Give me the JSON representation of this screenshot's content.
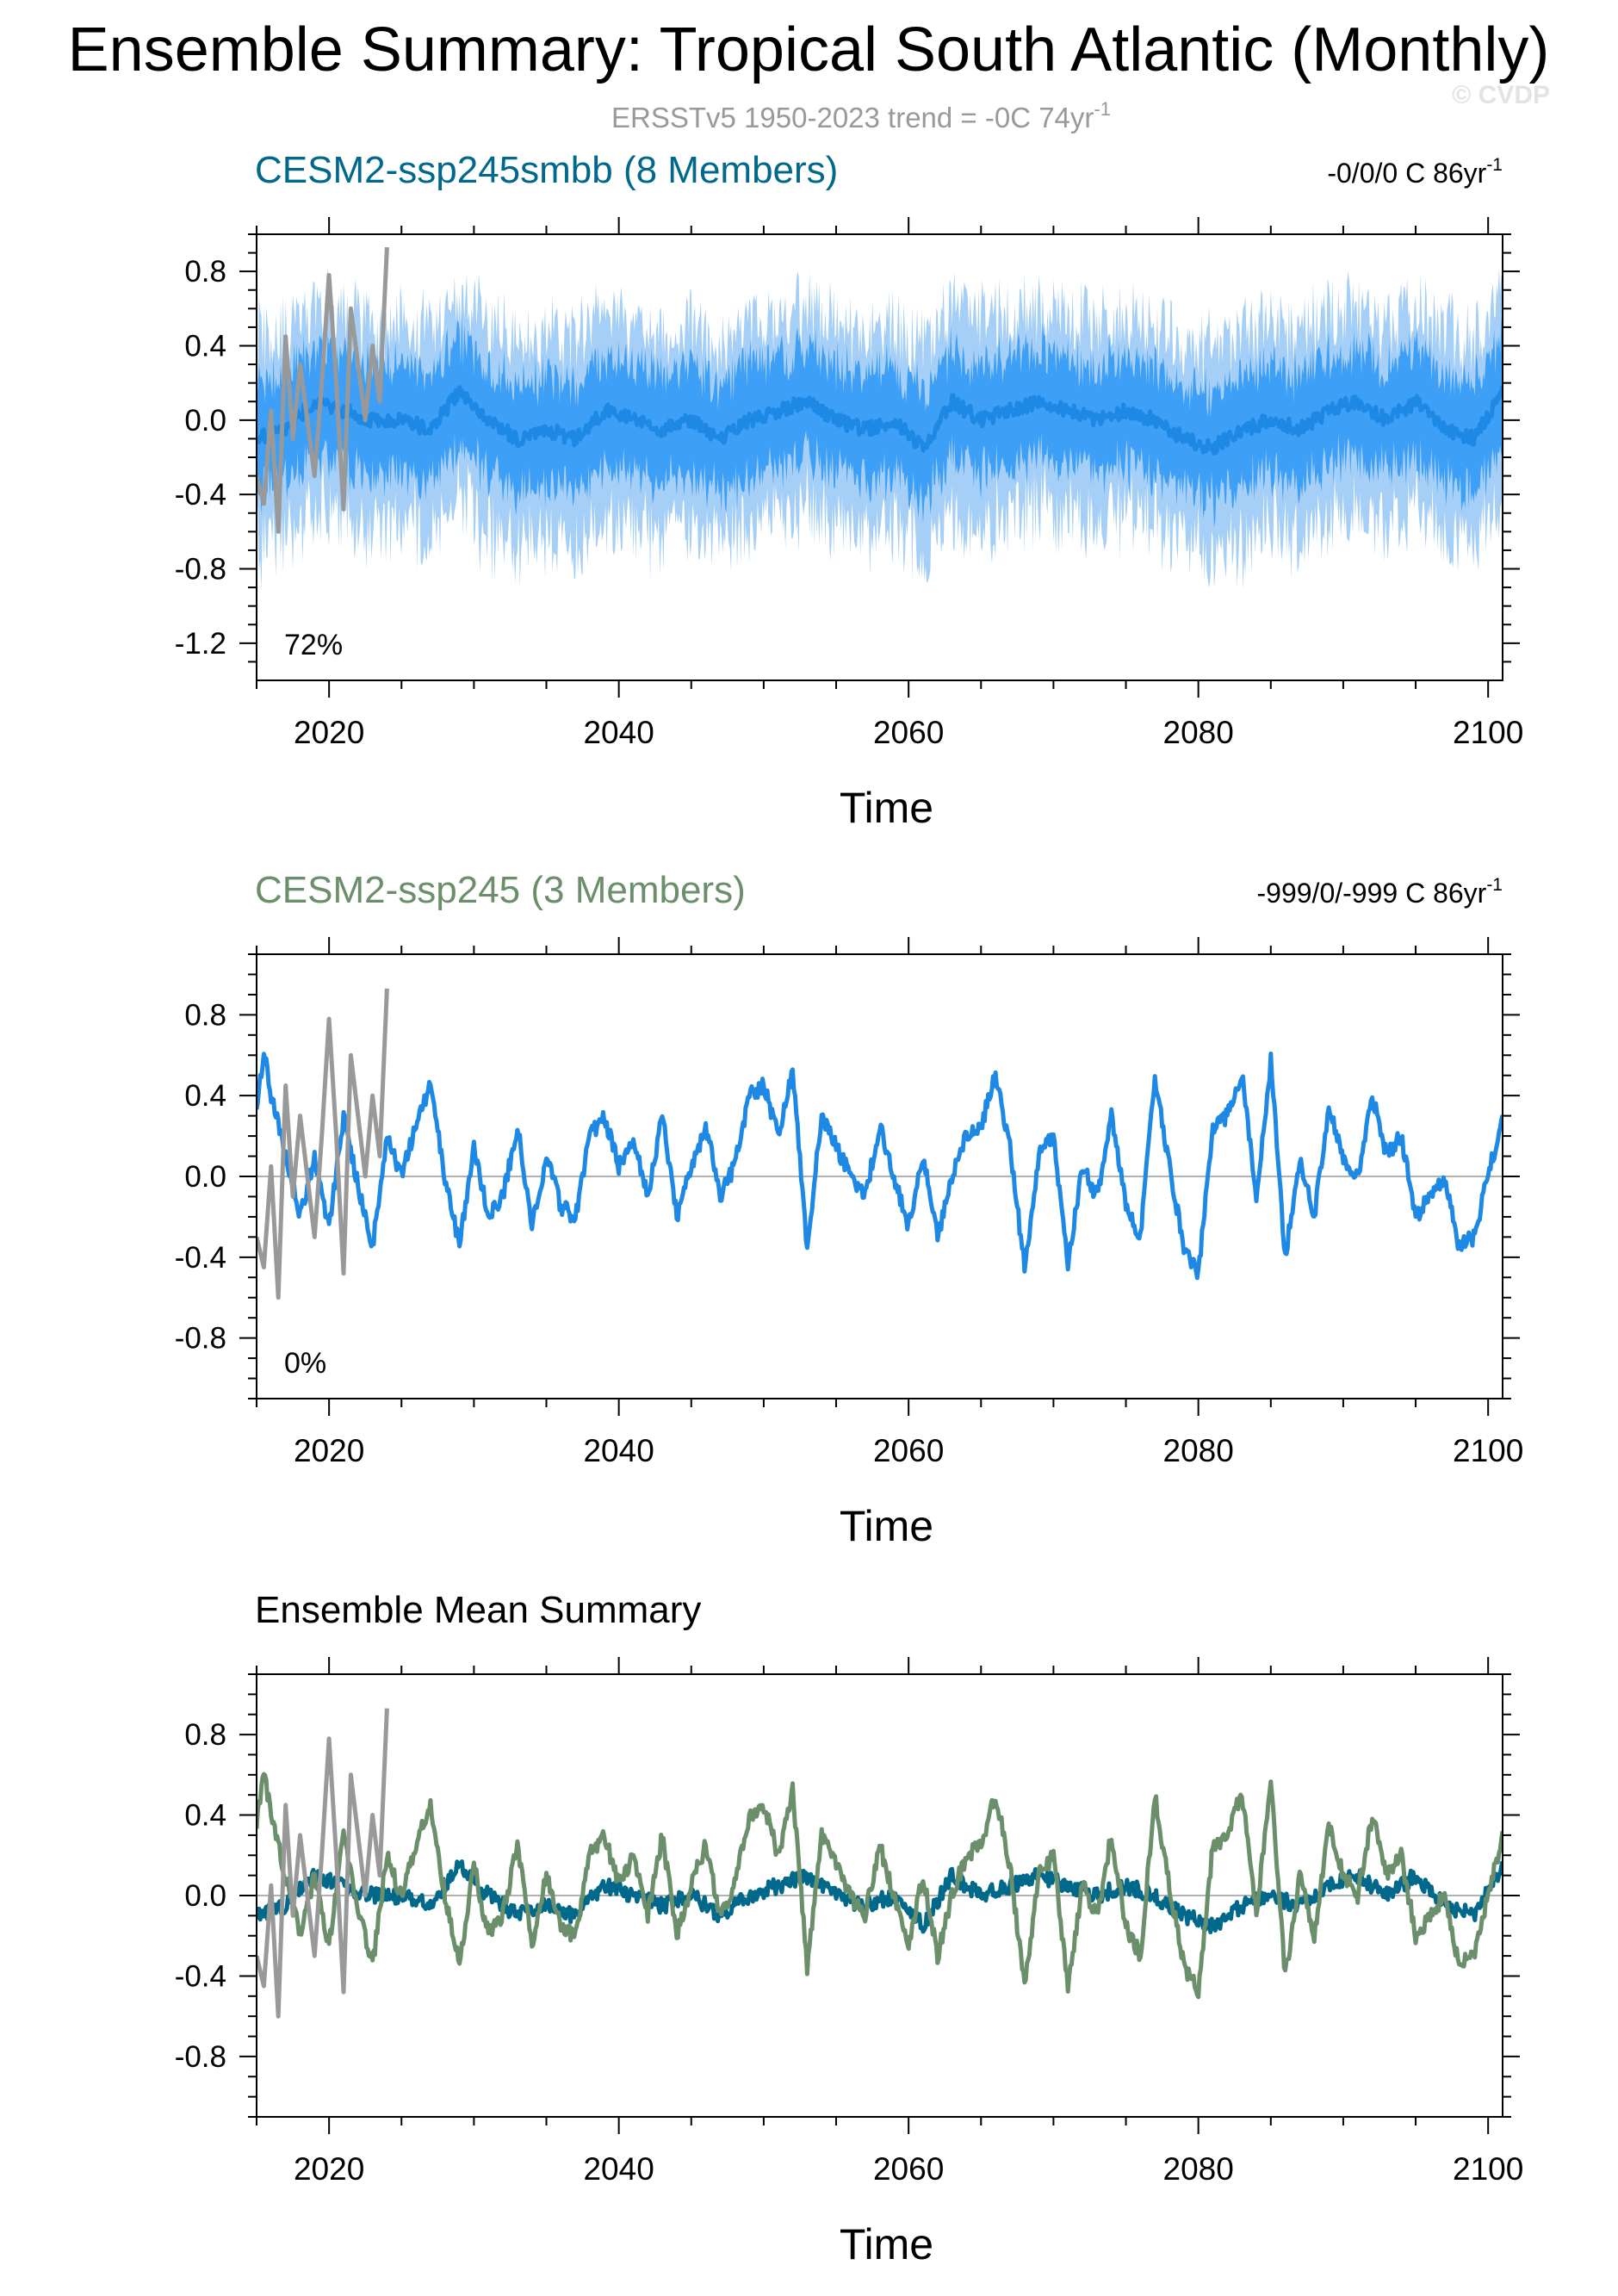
{
  "title": "Ensemble Summary: Tropical South Atlantic (Monthly)",
  "subtitle": "ERSSTv5 1950-2023 trend = -0C 74yr",
  "subtitle_sup": "-1",
  "watermark": "© CVDP",
  "colors": {
    "observations": "#999999",
    "ens1_mean": "#1e88e5",
    "ens1_inner": "#3d9ff5",
    "ens1_outer": "#a6cff7",
    "ens2_line": "#1e88e5",
    "summary_ens1": "#00688b",
    "summary_ens2": "#6b8e6b",
    "ens1_title": "#00688b",
    "ens2_title": "#6b8e6b"
  },
  "panels": [
    {
      "title": "CESM2-ssp245smbb (8 Members)",
      "trend": "-0/0/0 C 86yr",
      "trend_sup": "-1",
      "pct": "72%",
      "xlabel": "Time"
    },
    {
      "title": "CESM2-ssp245 (3 Members)",
      "trend": "-999/0/-999 C 86yr",
      "trend_sup": "-1",
      "pct": "0%",
      "xlabel": "Time"
    },
    {
      "title": "Ensemble Mean Summary",
      "trend": "",
      "trend_sup": "",
      "pct": "",
      "xlabel": "Time"
    }
  ],
  "chart_data": [
    {
      "type": "area",
      "title": "CESM2-ssp245smbb (8 Members)",
      "xlabel": "Time",
      "ylabel": "",
      "xlim": [
        2015,
        2101
      ],
      "ylim": [
        -1.4,
        1.0
      ],
      "x_ticks": [
        2020,
        2040,
        2060,
        2080,
        2100
      ],
      "y_ticks": [
        -1.2,
        -0.8,
        -0.4,
        0.0,
        0.4,
        0.8
      ],
      "y_tick_labels": [
        "-1.2",
        "-0.8",
        "-0.4",
        "0.0",
        "0.4",
        "0.8"
      ],
      "x_tick_labels": [
        "2020",
        "2040",
        "2060",
        "2080",
        "2100"
      ],
      "zero_line": true,
      "series": [
        {
          "role": "ensemble_range",
          "x_start": 2015,
          "x_end": 2101,
          "outer_spread": 0.55,
          "inner_spread": 0.3
        },
        {
          "role": "ensemble_mean",
          "x": [
            2015,
            2017,
            2019,
            2021,
            2023,
            2025,
            2027,
            2029,
            2031,
            2033,
            2035,
            2037,
            2039,
            2041,
            2043,
            2045,
            2047,
            2049,
            2051,
            2053,
            2055,
            2057,
            2059,
            2061,
            2063,
            2065,
            2067,
            2069,
            2071,
            2073,
            2075,
            2077,
            2079,
            2081,
            2083,
            2085,
            2087,
            2089,
            2091,
            2093,
            2095,
            2097,
            2099,
            2101
          ],
          "values": [
            -0.1,
            -0.05,
            0.1,
            0.05,
            0.0,
            0.0,
            -0.05,
            0.15,
            0.0,
            -0.1,
            -0.05,
            -0.1,
            0.05,
            0.0,
            -0.05,
            0.0,
            -0.1,
            0.0,
            0.05,
            0.1,
            0.0,
            -0.05,
            0.0,
            -0.15,
            0.1,
            0.0,
            0.05,
            0.1,
            0.05,
            0.0,
            0.05,
            0.0,
            -0.1,
            -0.15,
            -0.05,
            0.0,
            -0.05,
            0.05,
            0.1,
            0.0,
            0.1,
            -0.05,
            -0.1,
            0.15
          ]
        },
        {
          "role": "observations",
          "name": "ERSSTv5",
          "x": [
            2015,
            2015.5,
            2016,
            2016.5,
            2017,
            2017.5,
            2018,
            2018.5,
            2019,
            2019.5,
            2020,
            2020.5,
            2021,
            2021.5,
            2022,
            2022.5,
            2023,
            2023.5,
            2024
          ],
          "values": [
            -0.3,
            -0.45,
            0.05,
            -0.6,
            0.45,
            -0.1,
            0.3,
            0.0,
            -0.3,
            0.2,
            0.78,
            0.2,
            -0.48,
            0.6,
            0.3,
            0.0,
            0.4,
            0.1,
            0.93
          ]
        }
      ]
    },
    {
      "type": "line",
      "title": "CESM2-ssp245 (3 Members)",
      "xlabel": "Time",
      "ylabel": "",
      "xlim": [
        2015,
        2101
      ],
      "ylim": [
        -1.1,
        1.1
      ],
      "x_ticks": [
        2020,
        2040,
        2060,
        2080,
        2100
      ],
      "y_ticks": [
        -0.8,
        -0.4,
        0.0,
        0.4,
        0.8
      ],
      "y_tick_labels": [
        "-0.8",
        "-0.4",
        "0.0",
        "0.4",
        "0.8"
      ],
      "x_tick_labels": [
        "2020",
        "2040",
        "2060",
        "2080",
        "2100"
      ],
      "zero_line": true,
      "series": [
        {
          "role": "ensemble_mean",
          "x": [
            2015,
            2015.5,
            2016,
            2017,
            2018,
            2019,
            2020,
            2021,
            2022,
            2023,
            2024,
            2025,
            2026,
            2027,
            2028,
            2029,
            2030,
            2031,
            2032,
            2033,
            2034,
            2035,
            2036,
            2037,
            2038,
            2039,
            2040,
            2041,
            2042,
            2043,
            2044,
            2045,
            2046,
            2047,
            2048,
            2049,
            2050,
            2051,
            2052,
            2053,
            2054,
            2055,
            2056,
            2057,
            2058,
            2059,
            2060,
            2061,
            2062,
            2063,
            2064,
            2065,
            2066,
            2067,
            2068,
            2069,
            2070,
            2071,
            2072,
            2073,
            2074,
            2075,
            2076,
            2077,
            2078,
            2079,
            2080,
            2081,
            2082,
            2083,
            2084,
            2085,
            2086,
            2087,
            2088,
            2089,
            2090,
            2091,
            2092,
            2093,
            2094,
            2095,
            2096,
            2097,
            2098,
            2099,
            2100,
            2101
          ],
          "values": [
            0.35,
            0.62,
            0.4,
            0.1,
            -0.2,
            0.1,
            -0.25,
            0.3,
            -0.05,
            -0.35,
            0.2,
            0.0,
            0.25,
            0.45,
            0.0,
            -0.35,
            0.15,
            -0.2,
            -0.1,
            0.25,
            -0.25,
            0.1,
            -0.15,
            -0.2,
            0.2,
            0.3,
            0.05,
            0.2,
            -0.1,
            0.3,
            -0.2,
            0.05,
            0.25,
            -0.1,
            0.05,
            0.4,
            0.45,
            0.2,
            0.52,
            -0.35,
            0.3,
            0.15,
            0.0,
            -0.1,
            0.25,
            0.0,
            -0.25,
            0.1,
            -0.3,
            0.0,
            0.2,
            0.25,
            0.5,
            0.15,
            -0.45,
            0.1,
            0.2,
            -0.45,
            0.05,
            -0.1,
            0.3,
            -0.15,
            -0.3,
            0.5,
            0.05,
            -0.35,
            -0.48,
            0.25,
            0.3,
            0.52,
            -0.1,
            0.57,
            -0.4,
            0.1,
            -0.2,
            0.35,
            0.1,
            0.0,
            0.4,
            0.1,
            0.2,
            -0.2,
            -0.1,
            0.0,
            -0.35,
            -0.3,
            0.0,
            0.3
          ]
        },
        {
          "role": "observations",
          "name": "ERSSTv5",
          "x": [
            2015,
            2015.5,
            2016,
            2016.5,
            2017,
            2017.5,
            2018,
            2018.5,
            2019,
            2019.5,
            2020,
            2020.5,
            2021,
            2021.5,
            2022,
            2022.5,
            2023,
            2023.5,
            2024
          ],
          "values": [
            -0.3,
            -0.45,
            0.05,
            -0.6,
            0.45,
            -0.1,
            0.3,
            0.0,
            -0.3,
            0.2,
            0.78,
            0.2,
            -0.48,
            0.6,
            0.3,
            0.0,
            0.4,
            0.1,
            0.93
          ]
        }
      ]
    },
    {
      "type": "line",
      "title": "Ensemble Mean Summary",
      "xlabel": "Time",
      "ylabel": "",
      "xlim": [
        2015,
        2101
      ],
      "ylim": [
        -1.1,
        1.1
      ],
      "x_ticks": [
        2020,
        2040,
        2060,
        2080,
        2100
      ],
      "y_ticks": [
        -0.8,
        -0.4,
        0.0,
        0.4,
        0.8
      ],
      "y_tick_labels": [
        "-0.8",
        "-0.4",
        "0.0",
        "0.4",
        "0.8"
      ],
      "x_tick_labels": [
        "2020",
        "2040",
        "2060",
        "2080",
        "2100"
      ],
      "zero_line": true,
      "series": [
        {
          "role": "ens1",
          "x": [
            2015,
            2017,
            2019,
            2021,
            2023,
            2025,
            2027,
            2029,
            2031,
            2033,
            2035,
            2037,
            2039,
            2041,
            2043,
            2045,
            2047,
            2049,
            2051,
            2053,
            2055,
            2057,
            2059,
            2061,
            2063,
            2065,
            2067,
            2069,
            2071,
            2073,
            2075,
            2077,
            2079,
            2081,
            2083,
            2085,
            2087,
            2089,
            2091,
            2093,
            2095,
            2097,
            2099,
            2101
          ],
          "values": [
            -0.1,
            -0.05,
            0.1,
            0.05,
            0.0,
            0.0,
            -0.05,
            0.15,
            0.0,
            -0.1,
            -0.05,
            -0.1,
            0.05,
            0.0,
            -0.05,
            0.0,
            -0.1,
            0.0,
            0.05,
            0.1,
            0.0,
            -0.05,
            0.0,
            -0.15,
            0.1,
            0.0,
            0.05,
            0.1,
            0.05,
            0.0,
            0.05,
            0.0,
            -0.1,
            -0.15,
            -0.05,
            0.0,
            -0.05,
            0.05,
            0.1,
            0.0,
            0.1,
            -0.05,
            -0.1,
            0.15
          ]
        },
        {
          "role": "ens2",
          "x": [
            2015,
            2015.5,
            2016,
            2017,
            2018,
            2019,
            2020,
            2021,
            2022,
            2023,
            2024,
            2025,
            2026,
            2027,
            2028,
            2029,
            2030,
            2031,
            2032,
            2033,
            2034,
            2035,
            2036,
            2037,
            2038,
            2039,
            2040,
            2041,
            2042,
            2043,
            2044,
            2045,
            2046,
            2047,
            2048,
            2049,
            2050,
            2051,
            2052,
            2053,
            2054,
            2055,
            2056,
            2057,
            2058,
            2059,
            2060,
            2061,
            2062,
            2063,
            2064,
            2065,
            2066,
            2067,
            2068,
            2069,
            2070,
            2071,
            2072,
            2073,
            2074,
            2075,
            2076,
            2077,
            2078,
            2079,
            2080,
            2081,
            2082,
            2083,
            2084,
            2085,
            2086,
            2087,
            2088,
            2089,
            2090,
            2091,
            2092,
            2093,
            2094,
            2095,
            2096,
            2097,
            2098,
            2099,
            2100,
            2101
          ],
          "values": [
            0.35,
            0.62,
            0.4,
            0.1,
            -0.2,
            0.1,
            -0.25,
            0.3,
            -0.05,
            -0.35,
            0.2,
            0.0,
            0.25,
            0.45,
            0.0,
            -0.35,
            0.15,
            -0.2,
            -0.1,
            0.25,
            -0.25,
            0.1,
            -0.15,
            -0.2,
            0.2,
            0.3,
            0.05,
            0.2,
            -0.1,
            0.3,
            -0.2,
            0.05,
            0.25,
            -0.1,
            0.05,
            0.4,
            0.45,
            0.2,
            0.52,
            -0.35,
            0.3,
            0.15,
            0.0,
            -0.1,
            0.25,
            0.0,
            -0.25,
            0.1,
            -0.3,
            0.0,
            0.2,
            0.25,
            0.5,
            0.15,
            -0.45,
            0.1,
            0.2,
            -0.45,
            0.05,
            -0.1,
            0.3,
            -0.15,
            -0.3,
            0.5,
            0.05,
            -0.35,
            -0.48,
            0.25,
            0.3,
            0.52,
            -0.1,
            0.57,
            -0.4,
            0.1,
            -0.2,
            0.35,
            0.1,
            0.0,
            0.4,
            0.1,
            0.2,
            -0.2,
            -0.1,
            0.0,
            -0.35,
            -0.3,
            0.0,
            0.3
          ]
        },
        {
          "role": "observations",
          "name": "ERSSTv5",
          "x": [
            2015,
            2015.5,
            2016,
            2016.5,
            2017,
            2017.5,
            2018,
            2018.5,
            2019,
            2019.5,
            2020,
            2020.5,
            2021,
            2021.5,
            2022,
            2022.5,
            2023,
            2023.5,
            2024
          ],
          "values": [
            -0.3,
            -0.45,
            0.05,
            -0.6,
            0.45,
            -0.1,
            0.3,
            0.0,
            -0.3,
            0.2,
            0.78,
            0.2,
            -0.48,
            0.6,
            0.3,
            0.0,
            0.4,
            0.1,
            0.93
          ]
        }
      ]
    }
  ]
}
